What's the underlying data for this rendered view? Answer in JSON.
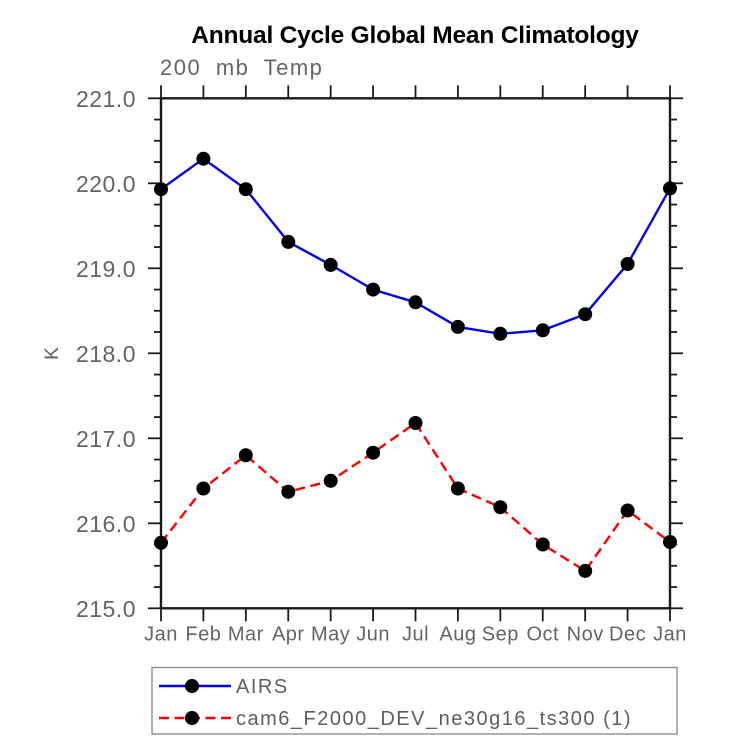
{
  "chart_data": {
    "type": "line",
    "title": "Annual Cycle Global Mean Climatology",
    "subtitle": "200 mb Temp",
    "ylabel": "K",
    "xlabel": "",
    "categories": [
      "Jan",
      "Feb",
      "Mar",
      "Apr",
      "May",
      "Jun",
      "Jul",
      "Aug",
      "Sep",
      "Oct",
      "Nov",
      "Dec",
      "Jan"
    ],
    "ylim": [
      215.0,
      221.0
    ],
    "ytick_interval": 1.0,
    "yminor_interval": 0.25,
    "ytick_labels": [
      "215.0",
      "216.0",
      "217.0",
      "218.0",
      "219.0",
      "220.0",
      "221.0"
    ],
    "grid": "off",
    "legend_position": "bottom-left-box",
    "series": [
      {
        "name": "AIRS",
        "line_style": "solid",
        "color": "#0202e8",
        "marker": "filled-circle",
        "marker_color": "#000000",
        "values": [
          219.93,
          220.29,
          219.93,
          219.31,
          219.04,
          218.75,
          218.6,
          218.31,
          218.23,
          218.27,
          218.46,
          219.05,
          219.94
        ]
      },
      {
        "name": "cam6_F2000_DEV_ne30g16_ts300 (1)",
        "line_style": "dashed",
        "color": "#fe0000",
        "marker": "filled-circle",
        "marker_color": "#000000",
        "values": [
          215.77,
          216.41,
          216.8,
          216.37,
          216.5,
          216.83,
          217.18,
          216.41,
          216.19,
          215.75,
          215.44,
          216.15,
          215.78
        ]
      }
    ],
    "axis_color": "#1a1a1a",
    "label_color": "#646464"
  }
}
